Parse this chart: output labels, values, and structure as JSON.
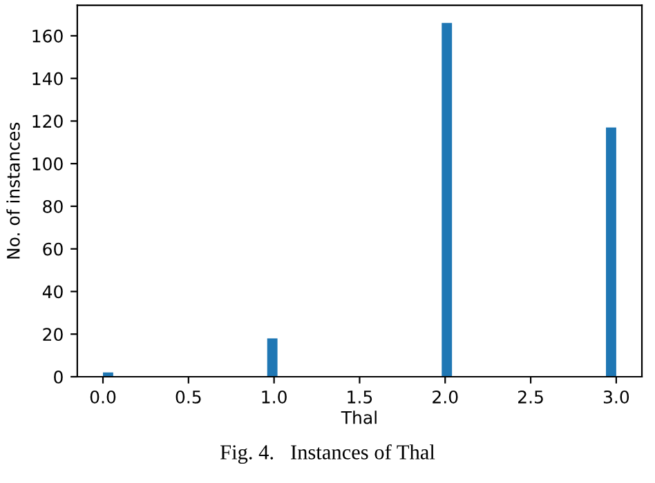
{
  "chart_data": {
    "type": "histogram",
    "xlabel": "Thal",
    "ylabel": "No. of instances",
    "annotations": [
      "Fig. 4.   Instances of Thal"
    ],
    "bins": [
      0,
      0.06,
      0.12,
      0.18,
      0.24,
      0.3,
      0.36,
      0.42,
      0.48,
      0.54,
      0.6,
      0.66,
      0.72,
      0.78,
      0.84,
      0.9,
      0.96,
      1.02,
      1.08,
      1.14,
      1.2,
      1.26,
      1.32,
      1.38,
      1.44,
      1.5,
      1.56,
      1.62,
      1.68,
      1.74,
      1.8,
      1.86,
      1.92,
      1.98,
      2.04,
      2.1,
      2.16,
      2.22,
      2.28,
      2.34,
      2.4,
      2.46,
      2.52,
      2.58,
      2.64,
      2.7,
      2.76,
      2.82,
      2.88,
      2.94,
      3.0
    ],
    "values": [
      2,
      0,
      0,
      0,
      0,
      0,
      0,
      0,
      0,
      0,
      0,
      0,
      0,
      0,
      0,
      0,
      18,
      0,
      0,
      0,
      0,
      0,
      0,
      0,
      0,
      0,
      0,
      0,
      0,
      0,
      0,
      0,
      0,
      166,
      0,
      0,
      0,
      0,
      0,
      0,
      0,
      0,
      0,
      0,
      0,
      0,
      0,
      0,
      0,
      117
    ],
    "color": "#1f77b4",
    "xlim": [
      -0.15,
      3.15
    ],
    "ylim": [
      0,
      174.3
    ],
    "xticks": [
      {
        "value": 0,
        "label": "0.0"
      },
      0.5,
      {
        "value": 1,
        "label": "1.0"
      },
      1.5,
      {
        "value": 2,
        "label": "2.0"
      },
      2.5,
      {
        "value": 3,
        "label": "3.0"
      }
    ],
    "yticks": [
      0,
      20,
      40,
      60,
      80,
      100,
      120,
      140,
      160
    ],
    "grid": false
  }
}
